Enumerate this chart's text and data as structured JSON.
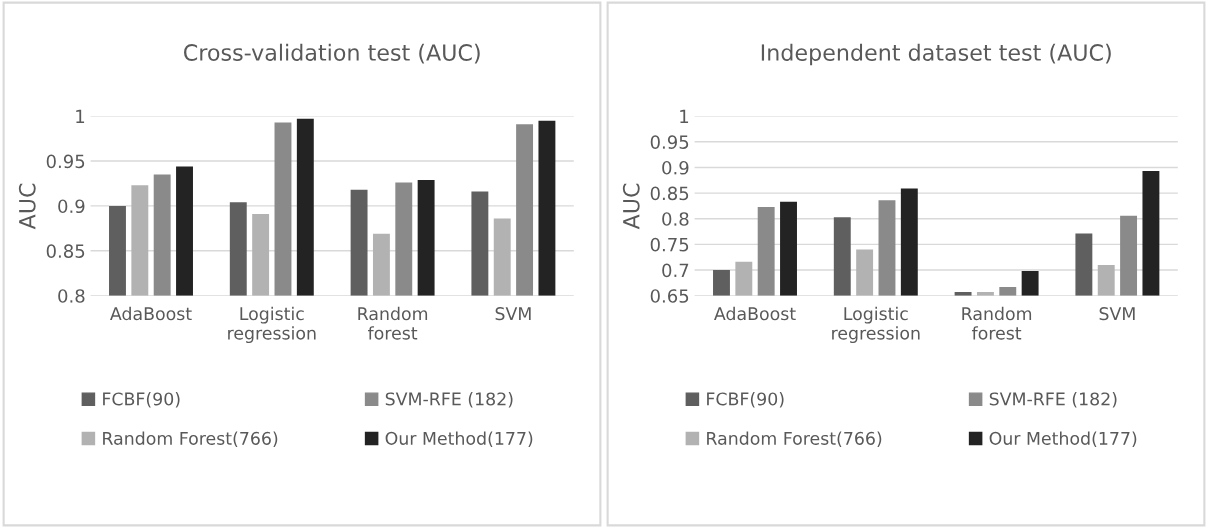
{
  "chart_data": [
    {
      "type": "bar",
      "title": "Cross-validation test (AUC)",
      "ylabel": "AUC",
      "categories": [
        "AdaBoost",
        "Logistic\nregression",
        "Random\nforest",
        "SVM"
      ],
      "series": [
        {
          "name": "FCBF(90)",
          "color": "#5f5f5f",
          "values": [
            0.9,
            0.904,
            0.918,
            0.916
          ]
        },
        {
          "name": "Random Forest(766)",
          "color": "#b2b2b2",
          "values": [
            0.923,
            0.891,
            0.869,
            0.886
          ]
        },
        {
          "name": "SVM-RFE (182)",
          "color": "#8a8a8a",
          "values": [
            0.935,
            0.993,
            0.926,
            0.991
          ]
        },
        {
          "name": "Our Method(177)",
          "color": "#232323",
          "values": [
            0.944,
            0.997,
            0.929,
            0.995
          ]
        }
      ],
      "ylim": [
        0.8,
        1
      ],
      "yticks": [
        0.8,
        0.85,
        0.9,
        0.95,
        1
      ],
      "grid": "y",
      "legend": "bottom"
    },
    {
      "type": "bar",
      "title": "Independent dataset test (AUC)",
      "ylabel": "AUC",
      "categories": [
        "AdaBoost",
        "Logistic\nregression",
        "Random\nforest",
        "SVM"
      ],
      "series": [
        {
          "name": "FCBF(90)",
          "color": "#5f5f5f",
          "values": [
            0.7,
            0.803,
            0.657,
            0.771
          ]
        },
        {
          "name": "Random Forest(766)",
          "color": "#b2b2b2",
          "values": [
            0.716,
            0.74,
            0.657,
            0.71
          ]
        },
        {
          "name": "SVM-RFE (182)",
          "color": "#8a8a8a",
          "values": [
            0.823,
            0.836,
            0.667,
            0.806
          ]
        },
        {
          "name": "Our Method(177)",
          "color": "#232323",
          "values": [
            0.833,
            0.859,
            0.698,
            0.893
          ]
        }
      ],
      "ylim": [
        0.65,
        1
      ],
      "yticks": [
        0.65,
        0.7,
        0.75,
        0.8,
        0.85,
        0.9,
        0.95,
        1
      ],
      "grid": "y",
      "legend": "bottom"
    }
  ]
}
